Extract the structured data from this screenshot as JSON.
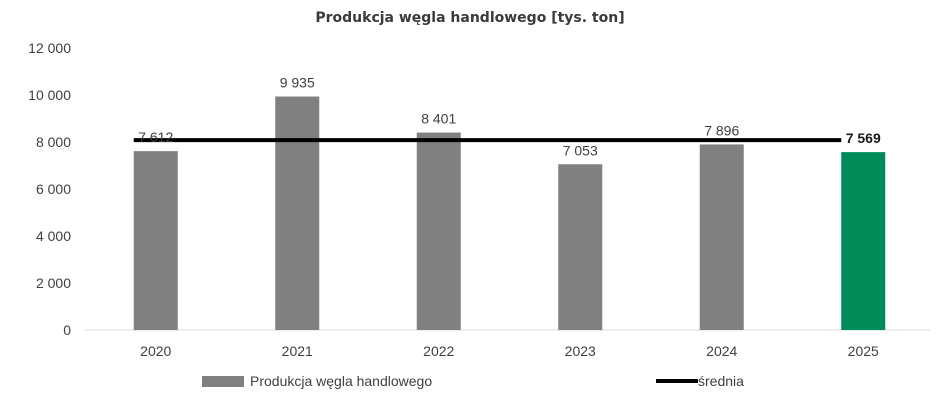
{
  "chart_data": {
    "type": "bar",
    "title": "Produkcja węgla handlowego [tys. ton]",
    "categories": [
      "2020",
      "2021",
      "2022",
      "2023",
      "2024",
      "2025"
    ],
    "series": [
      {
        "name": "Produkcja węgla handlowego",
        "values": [
          7612,
          9935,
          8401,
          7053,
          7896,
          7569
        ],
        "labels": [
          "7 612",
          "9 935",
          "8 401",
          "7 053",
          "7 896",
          "7 569"
        ],
        "color": "#808080",
        "highlight_color": "#008c5a",
        "highlight_index": 5
      },
      {
        "name": "średnia",
        "type": "line",
        "value": 8078,
        "color": "#000000"
      }
    ],
    "yticks": [
      "0",
      "2 000",
      "4 000",
      "6 000",
      "8 000",
      "10 000",
      "12 000"
    ],
    "ytick_values": [
      0,
      2000,
      4000,
      6000,
      8000,
      10000,
      12000
    ],
    "ylim": [
      0,
      12000
    ],
    "grid": false,
    "legend": "bottom"
  }
}
